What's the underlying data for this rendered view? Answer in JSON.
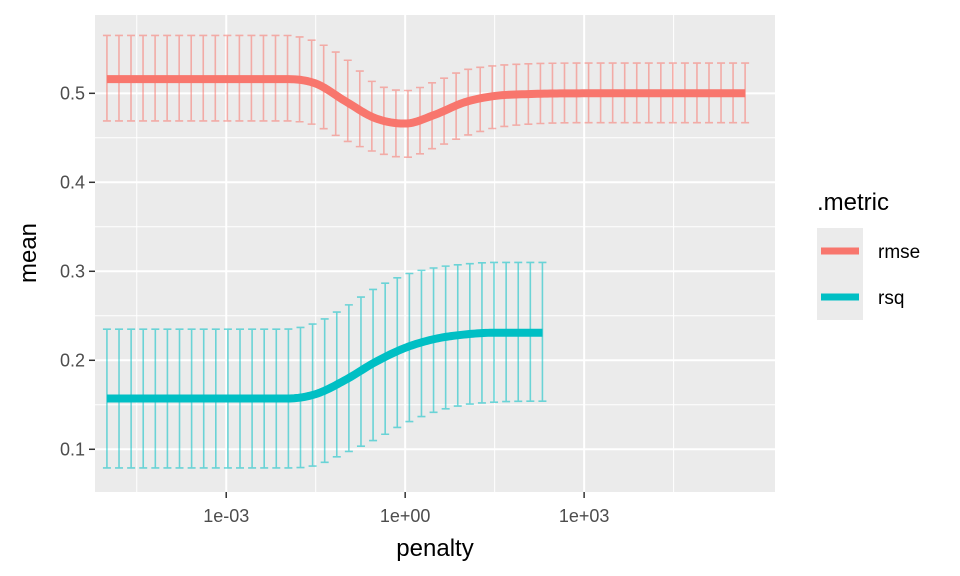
{
  "chart_data": {
    "type": "line",
    "xlabel": "penalty",
    "ylabel": "mean",
    "x_scale": "log10",
    "x_range_log10": [
      -5.2,
      6.2
    ],
    "y_range": [
      0.052,
      0.588
    ],
    "x_ticks": [
      {
        "value": "1e-03",
        "label": "1e-03"
      },
      {
        "value": "1e+00",
        "label": "1e+00"
      },
      {
        "value": "1e+03",
        "label": "1e+03"
      }
    ],
    "y_ticks": [
      {
        "value": 0.1,
        "label": "0.1"
      },
      {
        "value": 0.2,
        "label": "0.2"
      },
      {
        "value": 0.3,
        "label": "0.3"
      },
      {
        "value": 0.4,
        "label": "0.4"
      },
      {
        "value": 0.5,
        "label": "0.5"
      }
    ],
    "grid": true,
    "legend": {
      "title": ".metric",
      "position": "right",
      "entries": [
        {
          "label": "rmse",
          "color": "#F8766D"
        },
        {
          "label": "rsq",
          "color": "#00BFC4"
        }
      ]
    },
    "series": [
      {
        "name": "rmse",
        "color": "#F8766D",
        "points": [
          {
            "x": "1e-05",
            "mean": 0.516,
            "lower": 0.469,
            "upper": 0.565
          },
          {
            "x": "1e-04",
            "mean": 0.516,
            "lower": 0.469,
            "upper": 0.565
          },
          {
            "x": "1e-03",
            "mean": 0.516,
            "lower": 0.469,
            "upper": 0.565
          },
          {
            "x": "1e-02",
            "mean": 0.516,
            "lower": 0.469,
            "upper": 0.565
          },
          {
            "x": "3.16e-02",
            "mean": 0.511,
            "lower": 0.464,
            "upper": 0.558
          },
          {
            "x": "1e-01",
            "mean": 0.491,
            "lower": 0.447,
            "upper": 0.539
          },
          {
            "x": "3.16e-01",
            "mean": 0.472,
            "lower": 0.434,
            "upper": 0.511
          },
          {
            "x": "1e+00",
            "mean": 0.466,
            "lower": 0.428,
            "upper": 0.503
          },
          {
            "x": "3.16e+00",
            "mean": 0.476,
            "lower": 0.439,
            "upper": 0.513
          },
          {
            "x": "1e+01",
            "mean": 0.49,
            "lower": 0.452,
            "upper": 0.526
          },
          {
            "x": "3.16e+01",
            "mean": 0.497,
            "lower": 0.461,
            "upper": 0.531
          },
          {
            "x": "1e+02",
            "mean": 0.499,
            "lower": 0.465,
            "upper": 0.533
          },
          {
            "x": "1e+03",
            "mean": 0.5,
            "lower": 0.467,
            "upper": 0.534
          },
          {
            "x": "1e+04",
            "mean": 0.5,
            "lower": 0.467,
            "upper": 0.534
          },
          {
            "x": "1e+05",
            "mean": 0.5,
            "lower": 0.467,
            "upper": 0.534
          },
          {
            "x": "5e+05",
            "mean": 0.5,
            "lower": 0.467,
            "upper": 0.534
          }
        ]
      },
      {
        "name": "rsq",
        "color": "#00BFC4",
        "points": [
          {
            "x": "1e-05",
            "mean": 0.157,
            "lower": 0.079,
            "upper": 0.235
          },
          {
            "x": "1e-04",
            "mean": 0.157,
            "lower": 0.079,
            "upper": 0.235
          },
          {
            "x": "1e-03",
            "mean": 0.157,
            "lower": 0.079,
            "upper": 0.235
          },
          {
            "x": "1e-02",
            "mean": 0.157,
            "lower": 0.079,
            "upper": 0.235
          },
          {
            "x": "3.16e-02",
            "mean": 0.162,
            "lower": 0.082,
            "upper": 0.242
          },
          {
            "x": "1e-01",
            "mean": 0.178,
            "lower": 0.096,
            "upper": 0.26
          },
          {
            "x": "3.16e-01",
            "mean": 0.198,
            "lower": 0.111,
            "upper": 0.281
          },
          {
            "x": "1e+00",
            "mean": 0.214,
            "lower": 0.129,
            "upper": 0.296
          },
          {
            "x": "3.16e+00",
            "mean": 0.224,
            "lower": 0.142,
            "upper": 0.304
          },
          {
            "x": "1e+01",
            "mean": 0.229,
            "lower": 0.15,
            "upper": 0.308
          },
          {
            "x": "3.16e+01",
            "mean": 0.231,
            "lower": 0.153,
            "upper": 0.31
          },
          {
            "x": "1e+02",
            "mean": 0.231,
            "lower": 0.154,
            "upper": 0.31
          },
          {
            "x": "2e+02",
            "mean": 0.231,
            "lower": 0.154,
            "upper": 0.31
          }
        ]
      }
    ]
  }
}
